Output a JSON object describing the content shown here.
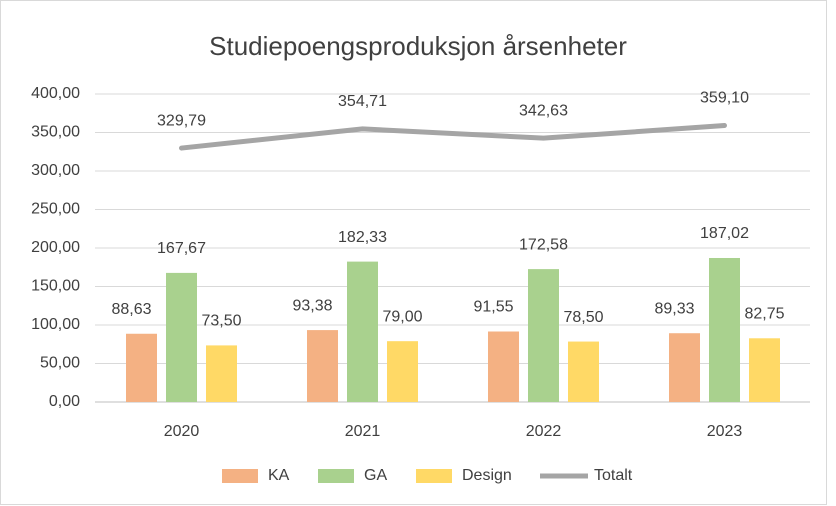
{
  "chart_data": {
    "type": "bar",
    "title": "Studiepoengsproduksjon årsenheter",
    "categories": [
      "2020",
      "2021",
      "2022",
      "2023"
    ],
    "series": [
      {
        "name": "KA",
        "type": "bar",
        "color": "#f4b183",
        "values": [
          88.63,
          93.38,
          91.55,
          89.33
        ],
        "value_labels": [
          "88,63",
          "93,38",
          "91,55",
          "89,33"
        ]
      },
      {
        "name": "GA",
        "type": "bar",
        "color": "#a9d18e",
        "values": [
          167.67,
          182.33,
          172.58,
          187.02
        ],
        "value_labels": [
          "167,67",
          "182,33",
          "172,58",
          "187,02"
        ]
      },
      {
        "name": "Design",
        "type": "bar",
        "color": "#ffd966",
        "values": [
          73.5,
          79.0,
          78.5,
          82.75
        ],
        "value_labels": [
          "73,50",
          "79,00",
          "78,50",
          "82,75"
        ]
      },
      {
        "name": "Totalt",
        "type": "line",
        "color": "#a5a5a5",
        "values": [
          329.79,
          354.71,
          342.63,
          359.1
        ],
        "value_labels": [
          "329,79",
          "354,71",
          "342,63",
          "359,10"
        ]
      }
    ],
    "ylim": [
      0,
      400
    ],
    "yticks": [
      {
        "value": 0,
        "label": "0,00"
      },
      {
        "value": 50,
        "label": "50,00"
      },
      {
        "value": 100,
        "label": "100,00"
      },
      {
        "value": 150,
        "label": "150,00"
      },
      {
        "value": 200,
        "label": "200,00"
      },
      {
        "value": 250,
        "label": "250,00"
      },
      {
        "value": 300,
        "label": "300,00"
      },
      {
        "value": 350,
        "label": "350,00"
      },
      {
        "value": 400,
        "label": "400,00"
      }
    ],
    "grid": true,
    "legend": "bottom"
  }
}
